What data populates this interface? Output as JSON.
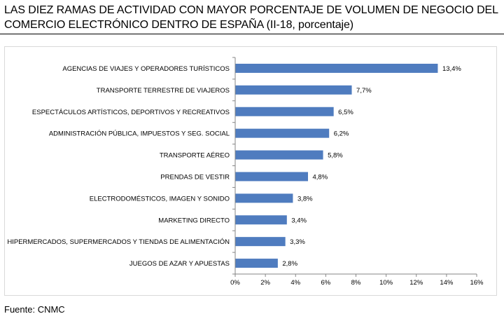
{
  "title": "LAS DIEZ RAMAS DE ACTIVIDAD CON MAYOR PORCENTAJE DE VOLUMEN DE NEGOCIO DEL COMERCIO ELECTRÓNICO DENTRO DE ESPAÑA (II-18, porcentaje)",
  "source": "Fuente: CNMC",
  "colors": {
    "bar": "#4f7cbf",
    "axis": "#868686"
  },
  "chart_data": {
    "type": "bar",
    "orientation": "horizontal",
    "categories": [
      "AGENCIAS DE VIAJES Y OPERADORES TURÍSTICOS",
      "TRANSPORTE TERRESTRE DE VIAJEROS",
      "ESPECTÁCULOS ARTÍSTICOS, DEPORTIVOS Y RECREATIVOS",
      "ADMINISTRACIÓN PÚBLICA, IMPUESTOS Y SEG. SOCIAL",
      "TRANSPORTE AÉREO",
      "PRENDAS DE VESTIR",
      "ELECTRODOMÉSTICOS,  IMAGEN Y SONIDO",
      "MARKETING DIRECTO",
      "HIPERMERCADOS, SUPERMERCADOS Y TIENDAS DE ALIMENTACIÓN",
      "JUEGOS DE AZAR Y APUESTAS"
    ],
    "values": [
      13.4,
      7.7,
      6.5,
      6.2,
      5.8,
      4.8,
      3.8,
      3.4,
      3.3,
      2.8
    ],
    "value_labels": [
      "13,4%",
      "7,7%",
      "6,5%",
      "6,2%",
      "5,8%",
      "4,8%",
      "3,8%",
      "3,4%",
      "3,3%",
      "2,8%"
    ],
    "xlim": [
      0,
      16
    ],
    "xticks": [
      0,
      2,
      4,
      6,
      8,
      10,
      12,
      14,
      16
    ],
    "xtick_labels": [
      "0%",
      "2%",
      "4%",
      "6%",
      "8%",
      "10%",
      "12%",
      "14%",
      "16%"
    ],
    "grid": false,
    "legend": "none"
  }
}
